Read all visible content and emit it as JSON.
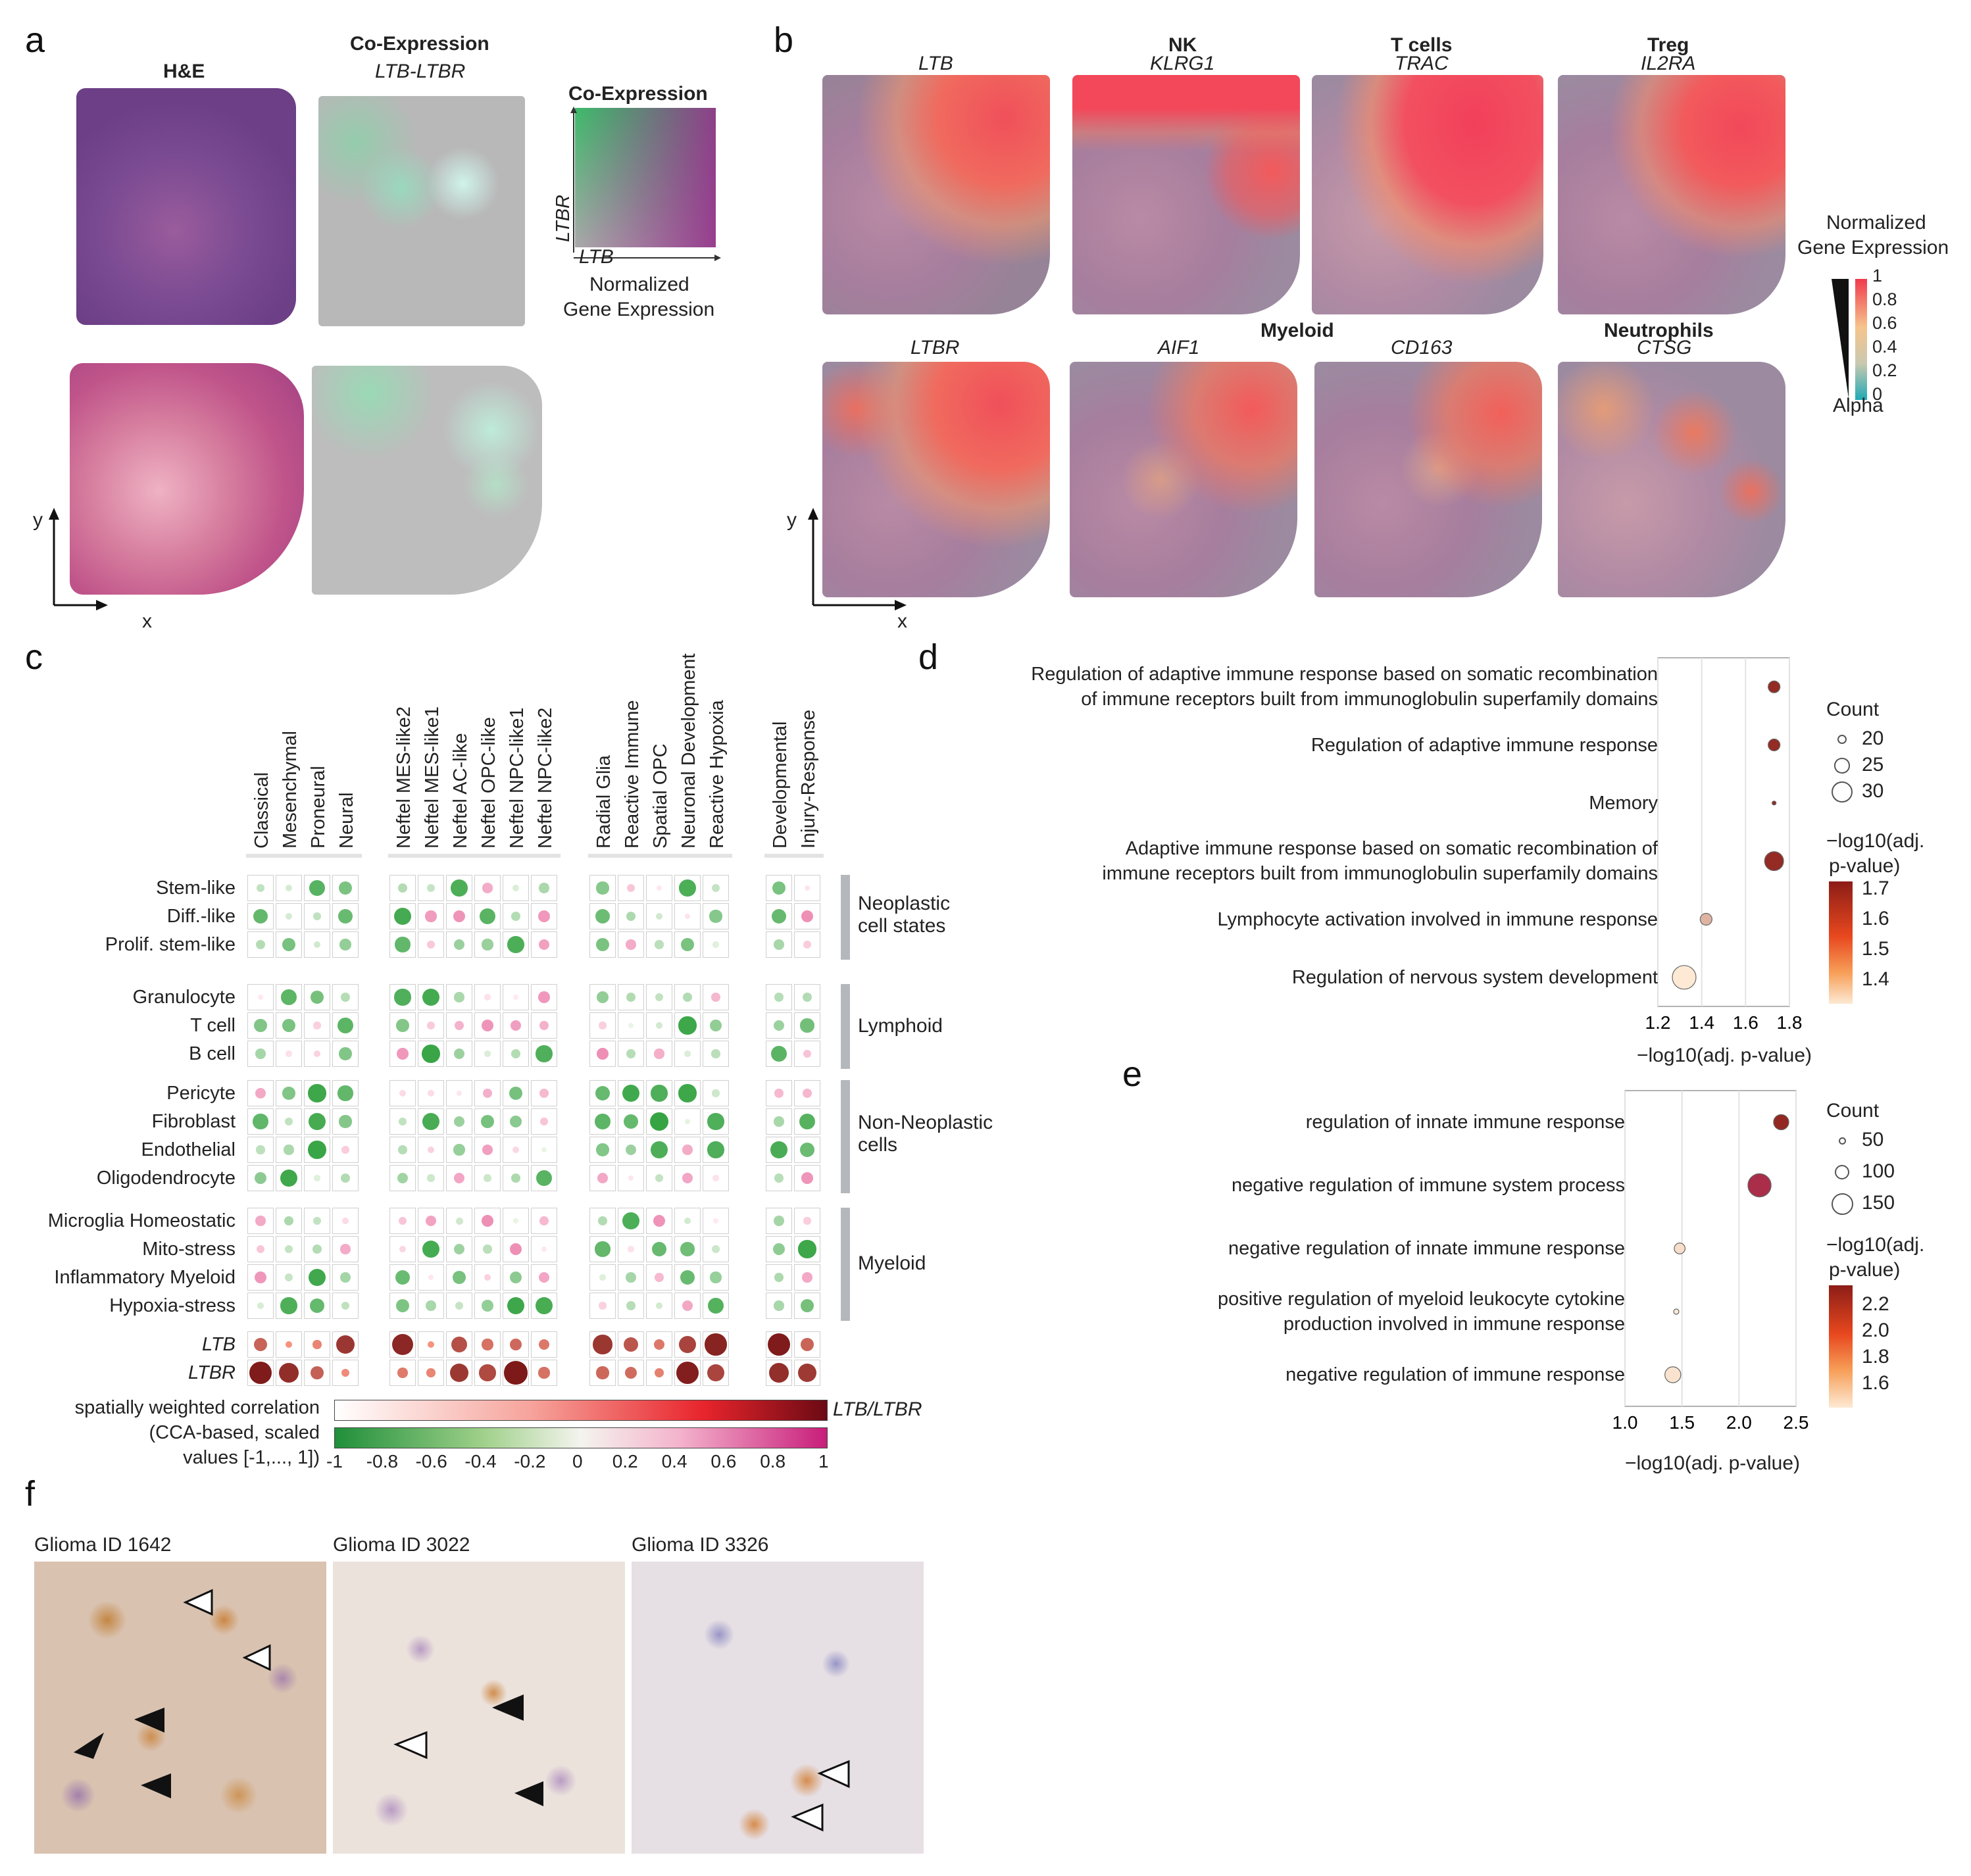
{
  "panels": {
    "a": "a",
    "b": "b",
    "c": "c",
    "d": "d",
    "e": "e",
    "f": "f"
  },
  "panel_a": {
    "he_title": "H&E",
    "coexp_title": "Co-Expression",
    "coexp_sub": "LTB-LTBR",
    "legend_title": "Co-Expression",
    "legend_y": "LTBR",
    "legend_x": "LTB",
    "legend_caption_1": "Normalized",
    "legend_caption_2": "Gene Expression",
    "axis_y": "y",
    "axis_x": "x"
  },
  "panel_b": {
    "top": [
      {
        "group": "",
        "gene": "LTB"
      },
      {
        "group": "NK",
        "gene": "KLRG1"
      },
      {
        "group": "T cells",
        "gene": "TRAC"
      },
      {
        "group": "Treg",
        "gene": "IL2RA"
      }
    ],
    "bottom": [
      {
        "group": "",
        "gene": "LTBR"
      },
      {
        "group": "",
        "gene": "AIF1"
      },
      {
        "group": "",
        "gene": "CD163"
      },
      {
        "group": "Neutrophils",
        "gene": "CTSG"
      }
    ],
    "myeloid_label": "Myeloid",
    "legend_title_1": "Normalized",
    "legend_title_2": "Gene Expression",
    "legend_ticks": [
      "1",
      "0.8",
      "0.6",
      "0.4",
      "0.2",
      "0"
    ],
    "alpha_label": "Alpha",
    "axis_y": "y",
    "axis_x": "x"
  },
  "panel_c": {
    "col_groups": [
      [
        "Classical",
        "Mesenchymal",
        "Proneural",
        "Neural"
      ],
      [
        "Neftel MES-like2",
        "Neftel MES-like1",
        "Neftel AC-like",
        "Neftel OPC-like",
        "Neftel NPC-like1",
        "Neftel NPC-like2"
      ],
      [
        "Radial Glia",
        "Reactive Immune",
        "Spatial OPC",
        "Neuronal Development",
        "Reactive Hypoxia"
      ],
      [
        "Developmental",
        "Injury-Response"
      ]
    ],
    "row_groups": [
      {
        "label": "Neoplastic\ncell states",
        "rows": [
          "Stem-like",
          "Diff.-like",
          "Prolif. stem-like"
        ]
      },
      {
        "label": "Lymphoid",
        "rows": [
          "Granulocyte",
          "T cell",
          "B cell"
        ]
      },
      {
        "label": "Non-Neoplastic\ncells",
        "rows": [
          "Pericyte",
          "Fibroblast",
          "Endothelial",
          "Oligodendrocyte"
        ]
      },
      {
        "label": "Myeloid",
        "rows": [
          "Microglia Homeostatic",
          "Mito-stress",
          "Inflammatory Myeloid",
          "Hypoxia-stress"
        ]
      }
    ],
    "gene_rows": [
      "LTB",
      "LTBR"
    ],
    "legend_text_1": "spatially weighted correlation",
    "legend_text_2": "(CCA-based, scaled",
    "legend_text_3": "values [-1,..., 1])",
    "legend_gene_label": "LTB/LTBR",
    "legend_ticks": [
      "-1",
      "-0.8",
      "-0.6",
      "-0.4",
      "-0.2",
      "0",
      "0.2",
      "0.4",
      "0.6",
      "0.8",
      "1"
    ]
  },
  "panel_d": {
    "terms": [
      "Regulation of adaptive immune response based on somatic recombination\nof immune receptors built from immunoglobulin superfamily domains",
      "Regulation of adaptive immune response",
      "Memory",
      "Adaptive immune response based on somatic recombination of\nimmune receptors built from immunoglobulin superfamily domains",
      "Lymphocyte activation involved in immune response",
      "Regulation of nervous system development"
    ],
    "x_ticks": [
      "1.2",
      "1.4",
      "1.6",
      "1.8"
    ],
    "x_label": "−log10(adj. p-value)",
    "count_title": "Count",
    "count_values": [
      "20",
      "25",
      "30"
    ],
    "color_title_1": "−log10(adj.",
    "color_title_2": "p-value)",
    "color_ticks": [
      "1.7",
      "1.6",
      "1.5",
      "1.4"
    ]
  },
  "panel_e": {
    "terms": [
      "regulation of innate immune response",
      "negative regulation of immune system process",
      "negative regulation of innate immune response",
      "positive regulation of myeloid leukocyte cytokine\nproduction involved in immune response",
      "negative regulation of immune response"
    ],
    "x_ticks": [
      "1.0",
      "1.5",
      "2.0",
      "2.5"
    ],
    "x_label": "−log10(adj. p-value)",
    "count_title": "Count",
    "count_values": [
      "50",
      "100",
      "150"
    ],
    "color_title_1": "−log10(adj.",
    "color_title_2": "p-value)",
    "color_ticks": [
      "2.2",
      "2.0",
      "1.8",
      "1.6"
    ]
  },
  "panel_f": {
    "images": [
      "Glioma ID 1642",
      "Glioma ID 3022",
      "Glioma ID 3326"
    ]
  },
  "chart_data": [
    {
      "type": "scatter",
      "panel": "d",
      "xlabel": "−log10(adj. p-value)",
      "xlim": [
        1.2,
        1.8
      ],
      "points": [
        {
          "term": "Regulation of adaptive immune response based on somatic recombination of immune receptors built from immunoglobulin superfamily domains",
          "x": 1.73,
          "count": 22,
          "color_value": 1.72
        },
        {
          "term": "Regulation of adaptive immune response",
          "x": 1.73,
          "count": 22,
          "color_value": 1.72
        },
        {
          "term": "Memory",
          "x": 1.73,
          "count": 15,
          "color_value": 1.72
        },
        {
          "term": "Adaptive immune response based on somatic recombination of immune receptors built from immunoglobulin superfamily domains",
          "x": 1.73,
          "count": 28,
          "color_value": 1.72
        },
        {
          "term": "Lymphocyte activation involved in immune response",
          "x": 1.42,
          "count": 22,
          "color_value": 1.42
        },
        {
          "term": "Regulation of nervous system development",
          "x": 1.32,
          "count": 32,
          "color_value": 1.3
        }
      ]
    },
    {
      "type": "scatter",
      "panel": "e",
      "xlabel": "−log10(adj. p-value)",
      "xlim": [
        1.0,
        2.5
      ],
      "points": [
        {
          "term": "regulation of innate immune response",
          "x": 2.37,
          "count": 105,
          "color_value": 2.35
        },
        {
          "term": "negative regulation of immune system process",
          "x": 2.18,
          "count": 160,
          "color_value": 2.15
        },
        {
          "term": "negative regulation of innate immune response",
          "x": 1.48,
          "count": 75,
          "color_value": 1.5
        },
        {
          "term": "positive regulation of myeloid leukocyte cytokine production involved in immune response",
          "x": 1.45,
          "count": 25,
          "color_value": 1.45
        },
        {
          "term": "negative regulation of immune response",
          "x": 1.42,
          "count": 110,
          "color_value": 1.48
        }
      ]
    }
  ]
}
